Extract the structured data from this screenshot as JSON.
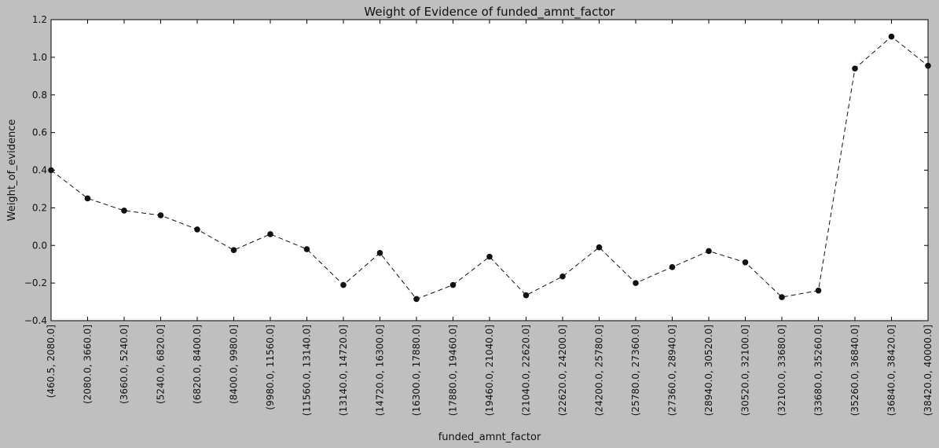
{
  "chart_data": {
    "type": "line",
    "title": "Weight of Evidence of funded_amnt_factor",
    "xlabel": "funded_amnt_factor",
    "ylabel": "Weight_of_evidence",
    "ylim": [
      -0.4,
      1.2
    ],
    "yticks": [
      "−0.4",
      "−0.2",
      "0.0",
      "0.2",
      "0.4",
      "0.6",
      "0.8",
      "1.0",
      "1.2"
    ],
    "ytick_values": [
      -0.4,
      -0.2,
      0.0,
      0.2,
      0.4,
      0.6,
      0.8,
      1.0,
      1.2
    ],
    "grid": false,
    "line_style": "dashed",
    "marker": "circle",
    "colors": {
      "line": "#111111",
      "marker": "#111111",
      "figure_bg": "#bfbfbf",
      "plot_bg": "#ffffff"
    },
    "categories": [
      "(460.5, 2080.0]",
      "(2080.0, 3660.0]",
      "(3660.0, 5240.0]",
      "(5240.0, 6820.0]",
      "(6820.0, 8400.0]",
      "(8400.0, 9980.0]",
      "(9980.0, 11560.0]",
      "(11560.0, 13140.0]",
      "(13140.0, 14720.0]",
      "(14720.0, 16300.0]",
      "(16300.0, 17880.0]",
      "(17880.0, 19460.0]",
      "(19460.0, 21040.0]",
      "(21040.0, 22620.0]",
      "(22620.0, 24200.0]",
      "(24200.0, 25780.0]",
      "(25780.0, 27360.0]",
      "(27360.0, 28940.0]",
      "(28940.0, 30520.0]",
      "(30520.0, 32100.0]",
      "(32100.0, 33680.0]",
      "(33680.0, 35260.0]",
      "(35260.0, 36840.0]",
      "(36840.0, 38420.0]",
      "(38420.0, 40000.0]"
    ],
    "values": [
      0.4,
      0.25,
      0.185,
      0.16,
      0.085,
      -0.025,
      0.06,
      -0.02,
      -0.21,
      -0.04,
      -0.285,
      -0.21,
      -0.06,
      -0.265,
      -0.165,
      -0.01,
      -0.2,
      -0.115,
      -0.03,
      -0.09,
      -0.275,
      -0.24,
      0.94,
      1.11,
      0.955
    ]
  }
}
